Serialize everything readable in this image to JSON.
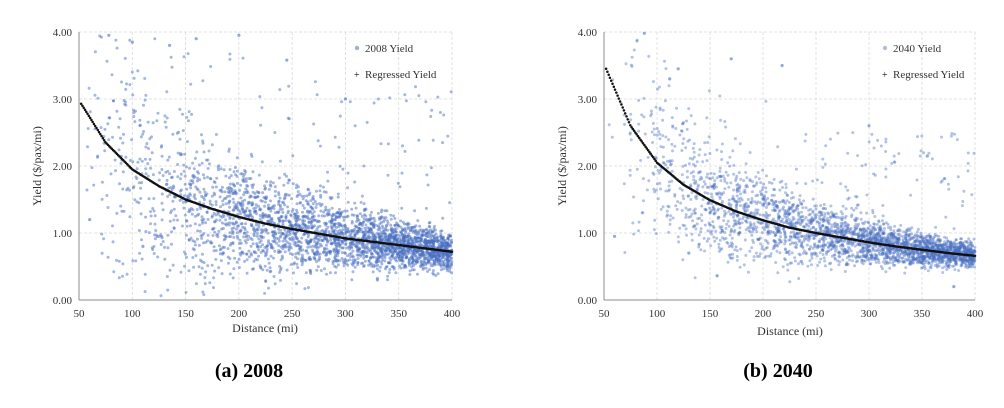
{
  "colors": {
    "scatter": "#4a6fc2",
    "regression": "#111111",
    "grid": "#d9d9d9",
    "axis": "#8c8c8c"
  },
  "chart_data": [
    {
      "type": "scatter",
      "caption": "(a) 2008",
      "xlabel": "Distance (mi)",
      "ylabel": "Yield ($/pax/mi)",
      "xlim": [
        50,
        400
      ],
      "ylim": [
        0,
        4
      ],
      "x_ticks": [
        "50",
        "100",
        "150",
        "200",
        "250",
        "300",
        "350",
        "400"
      ],
      "y_ticks": [
        "0.00",
        "1.00",
        "2.00",
        "3.00",
        "4.00"
      ],
      "grid": true,
      "legend_position": "top-right",
      "series": [
        {
          "name": "2008 Yield",
          "kind": "scatter",
          "x_range": [
            50,
            400
          ],
          "approx_point_count": 3000,
          "sample_points": [
            [
              78,
              3.95
            ],
            [
              100,
              3.85
            ],
            [
              135,
              3.8
            ],
            [
              160,
              3.9
            ],
            [
              200,
              3.95
            ],
            [
              245,
              3.58
            ],
            [
              300,
              3.0
            ],
            [
              152,
              1.55
            ],
            [
              250,
              1.05
            ],
            [
              300,
              0.9
            ],
            [
              350,
              0.65
            ],
            [
              395,
              0.55
            ],
            [
              60,
              1.2
            ],
            [
              110,
              0.8
            ],
            [
              330,
              0.3
            ]
          ]
        },
        {
          "name": "Regressed Yield",
          "kind": "line",
          "x": [
            52,
            75,
            100,
            125,
            150,
            175,
            200,
            225,
            250,
            275,
            300,
            325,
            350,
            375,
            400
          ],
          "y": [
            2.93,
            2.35,
            1.95,
            1.7,
            1.5,
            1.36,
            1.24,
            1.14,
            1.06,
            0.99,
            0.92,
            0.87,
            0.82,
            0.77,
            0.72
          ]
        }
      ]
    },
    {
      "type": "scatter",
      "caption": "(b) 2040",
      "xlabel": "Distance (mi)",
      "ylabel": "Yield ($/pax/mi)",
      "xlim": [
        50,
        400
      ],
      "ylim": [
        0,
        4
      ],
      "x_ticks": [
        "50",
        "100",
        "150",
        "200",
        "250",
        "300",
        "350",
        "400"
      ],
      "y_ticks": [
        "0.00",
        "1.00",
        "2.00",
        "3.00",
        "4.00"
      ],
      "grid": true,
      "legend_position": "top-right",
      "series": [
        {
          "name": "2040 Yield",
          "kind": "scatter",
          "x_range": [
            50,
            400
          ],
          "approx_point_count": 3000,
          "sample_points": [
            [
              88,
              3.98
            ],
            [
              112,
              3.3
            ],
            [
              120,
              3.45
            ],
            [
              170,
              3.6
            ],
            [
              218,
              3.5
            ],
            [
              300,
              2.6
            ],
            [
              355,
              2.15
            ],
            [
              150,
              1.3
            ],
            [
              250,
              1.0
            ],
            [
              300,
              0.8
            ],
            [
              350,
              0.72
            ],
            [
              395,
              0.65
            ],
            [
              60,
              0.95
            ],
            [
              130,
              0.7
            ],
            [
              380,
              0.2
            ]
          ]
        },
        {
          "name": "Regressed Yield",
          "kind": "line",
          "x": [
            52,
            75,
            100,
            125,
            150,
            175,
            200,
            225,
            250,
            275,
            300,
            325,
            350,
            375,
            400
          ],
          "y": [
            3.45,
            2.6,
            2.05,
            1.72,
            1.49,
            1.32,
            1.19,
            1.08,
            1.0,
            0.93,
            0.86,
            0.8,
            0.75,
            0.7,
            0.66
          ]
        }
      ]
    }
  ]
}
